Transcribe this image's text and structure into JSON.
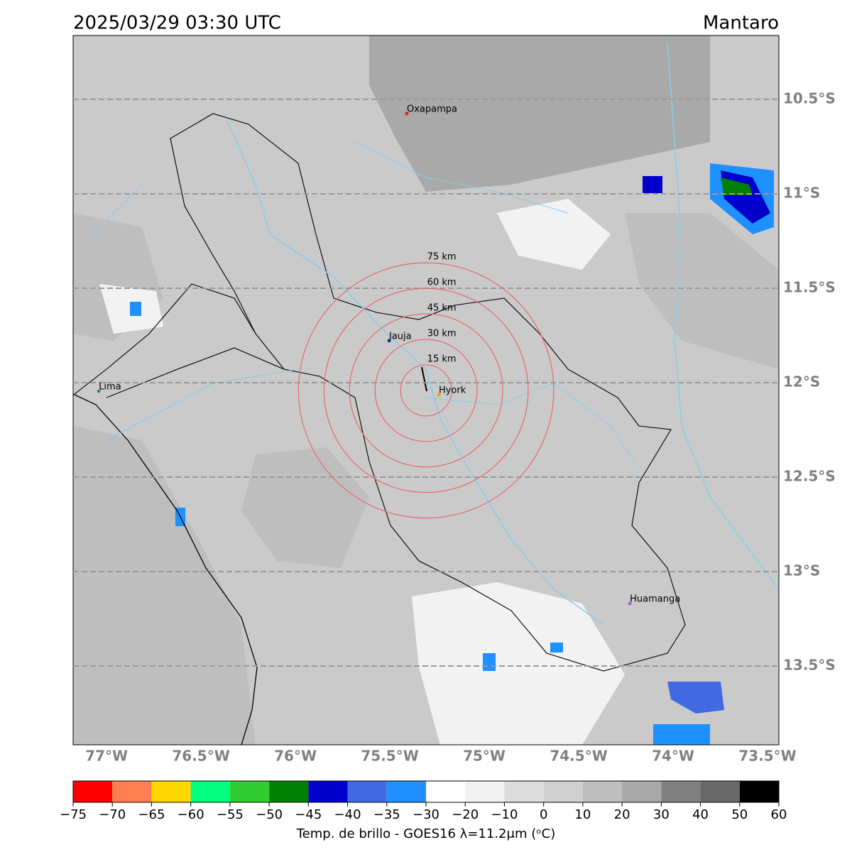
{
  "header": {
    "title": "2025/03/29 03:30 UTC",
    "region": "Mantaro"
  },
  "map": {
    "xlim": [
      -77.177,
      -73.44
    ],
    "ylim": [
      -13.917,
      -10.162
    ],
    "lon_ticks": [
      {
        "value": -77,
        "label": "77°W"
      },
      {
        "value": -76.5,
        "label": "76.5°W"
      },
      {
        "value": -76,
        "label": "76°W"
      },
      {
        "value": -75.5,
        "label": "75.5°W"
      },
      {
        "value": -75,
        "label": "75°W"
      },
      {
        "value": -74.5,
        "label": "74.5°W"
      },
      {
        "value": -74,
        "label": "74°W"
      },
      {
        "value": -73.5,
        "label": "73.5°W"
      }
    ],
    "lat_ticks": [
      {
        "value": -10.5,
        "label": "10.5°S"
      },
      {
        "value": -11,
        "label": "11°S"
      },
      {
        "value": -11.5,
        "label": "11.5°S"
      },
      {
        "value": -12,
        "label": "12°S"
      },
      {
        "value": -12.5,
        "label": "12.5°S"
      },
      {
        "value": -13,
        "label": "13°S"
      },
      {
        "value": -13.5,
        "label": "13.5°S"
      }
    ],
    "cities": [
      {
        "name": "Oxapampa",
        "lon": -75.41,
        "lat": -10.575,
        "color": "#d62728"
      },
      {
        "name": "Jauja",
        "lon": -75.504,
        "lat": -11.778,
        "color": "#1f4e9c"
      },
      {
        "name": "Lima",
        "lon": -77.041,
        "lat": -12.045,
        "color": "#2ca02c"
      },
      {
        "name": "Hyork",
        "lon": -75.241,
        "lat": -12.064,
        "color": "#ff9900"
      },
      {
        "name": "Huamanga",
        "lon": -74.229,
        "lat": -13.169,
        "color": "#9467bd"
      }
    ],
    "ring_center": {
      "lon": -75.308,
      "lat": -12.041
    },
    "rings": [
      {
        "value": 15,
        "label": "15 km"
      },
      {
        "value": 30,
        "label": "30 km"
      },
      {
        "value": 45,
        "label": "45 km"
      },
      {
        "value": 60,
        "label": "60 km"
      },
      {
        "value": 75,
        "label": "75 km"
      }
    ]
  },
  "colorbar": {
    "label": "Temp. de brillo - GOES16 λ=11.2μm (ᵒC)",
    "ticks": [
      {
        "value": -75,
        "label": "−75"
      },
      {
        "value": -70,
        "label": "−70"
      },
      {
        "value": -65,
        "label": "−65"
      },
      {
        "value": -60,
        "label": "−60"
      },
      {
        "value": -55,
        "label": "−55"
      },
      {
        "value": -50,
        "label": "−50"
      },
      {
        "value": -45,
        "label": "−45"
      },
      {
        "value": -40,
        "label": "−40"
      },
      {
        "value": -35,
        "label": "−35"
      },
      {
        "value": -30,
        "label": "−30"
      },
      {
        "value": -20,
        "label": "−20"
      },
      {
        "value": -10,
        "label": "−10"
      },
      0,
      10,
      20,
      30,
      40,
      50,
      60
    ],
    "colors": [
      "#ff0000",
      "#ff7f50",
      "#ffd700",
      "#00ff7f",
      "#32cd32",
      "#008000",
      "#0000cd",
      "#4169e1",
      "#1e90ff",
      "#ffffff",
      "#f2f2f2",
      "#dcdcdc",
      "#d0d0d0",
      "#bebebe",
      "#a9a9a9",
      "#808080",
      "#696969",
      "#000000"
    ]
  }
}
